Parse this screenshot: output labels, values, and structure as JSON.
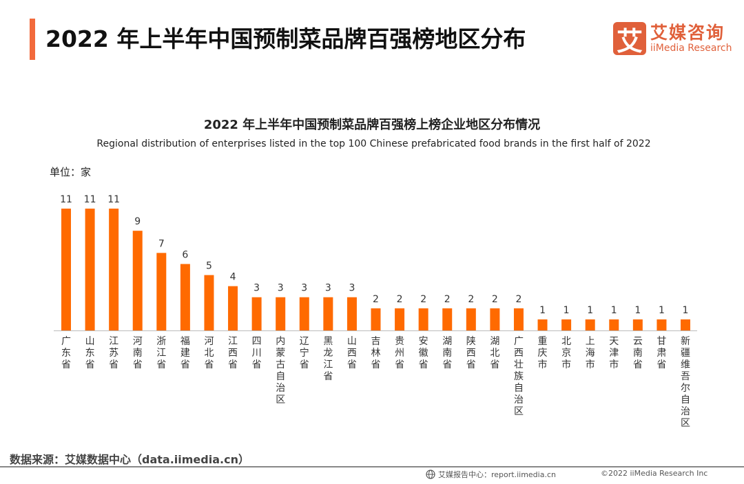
{
  "header": {
    "title": "2022 年上半年中国预制菜品牌百强榜地区分布"
  },
  "logo": {
    "mark": "艾",
    "cn": "艾媒咨询",
    "en": "iiMedia Research"
  },
  "chart_data": {
    "type": "bar",
    "title": "2022 年上半年中国预制菜品牌百强榜上榜企业地区分布情况",
    "subtitle": "Regional distribution of enterprises listed in the top 100 Chinese prefabricated food brands in the first half of 2022",
    "unit_label": "单位：家",
    "categories": [
      "广东省",
      "山东省",
      "江苏省",
      "河南省",
      "浙江省",
      "福建省",
      "河北省",
      "江西省",
      "四川省",
      "内蒙古自治区",
      "辽宁省",
      "黑龙江省",
      "山西省",
      "吉林省",
      "贵州省",
      "安徽省",
      "湖南省",
      "陕西省",
      "湖北省",
      "广西壮族自治区",
      "重庆市",
      "北京市",
      "上海市",
      "天津市",
      "云南省",
      "甘肃省",
      "新疆维吾尔自治区"
    ],
    "values": [
      11,
      11,
      11,
      9,
      7,
      6,
      5,
      4,
      3,
      3,
      3,
      3,
      3,
      2,
      2,
      2,
      2,
      2,
      2,
      2,
      1,
      1,
      1,
      1,
      1,
      1,
      1
    ],
    "ylim": [
      0,
      11
    ],
    "grid": false,
    "bar_color": "#ff6a00"
  },
  "footer": {
    "source": "数据来源：艾媒数据中心（data.iimedia.cn）",
    "report": "艾媒报告中心：report.iimedia.cn",
    "copyright": "©2022  iiMedia Research  Inc"
  }
}
